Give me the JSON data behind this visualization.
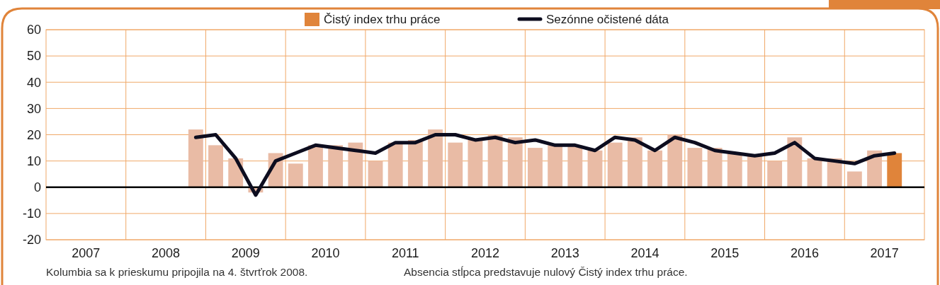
{
  "chart_data": {
    "type": "bar",
    "legend": "top",
    "grid": true,
    "x": [
      2008.875,
      2009.125,
      2009.375,
      2009.625,
      2009.875,
      2010.125,
      2010.375,
      2010.625,
      2010.875,
      2011.125,
      2011.375,
      2011.625,
      2011.875,
      2012.125,
      2012.375,
      2012.625,
      2012.875,
      2013.125,
      2013.375,
      2013.625,
      2013.875,
      2014.125,
      2014.375,
      2014.625,
      2014.875,
      2015.125,
      2015.375,
      2015.625,
      2015.875,
      2016.125,
      2016.375,
      2016.625,
      2016.875,
      2017.125,
      2017.375,
      2017.625
    ],
    "xlim": [
      2007,
      2018
    ],
    "xticks": [
      {
        "value": 2008,
        "label": null
      },
      {
        "value": 2009,
        "label": null
      },
      {
        "value": 2010,
        "label": null
      },
      {
        "value": 2011,
        "label": null
      },
      {
        "value": 2012,
        "label": null
      },
      {
        "value": 2013,
        "label": null
      },
      {
        "value": 2014,
        "label": null
      },
      {
        "value": 2015,
        "label": null
      },
      {
        "value": 2016,
        "label": null
      },
      {
        "value": 2017,
        "label": null
      },
      {
        "value": 2007.5,
        "label": "2007"
      },
      {
        "value": 2008.5,
        "label": "2008"
      },
      {
        "value": 2009.5,
        "label": "2009"
      },
      {
        "value": 2010.5,
        "label": "2010"
      },
      {
        "value": 2011.5,
        "label": "2011"
      },
      {
        "value": 2012.5,
        "label": "2012"
      },
      {
        "value": 2013.5,
        "label": "2013"
      },
      {
        "value": 2014.5,
        "label": "2014"
      },
      {
        "value": 2015.5,
        "label": "2015"
      },
      {
        "value": 2016.5,
        "label": "2016"
      },
      {
        "value": 2017.5,
        "label": "2017"
      }
    ],
    "ylim": [
      -20,
      60
    ],
    "yticks": [
      -20,
      -10,
      0,
      10,
      20,
      30,
      40,
      50,
      60
    ],
    "series": [
      {
        "name": "Čistý index trhu práce",
        "colors": [
          "#e9bba5",
          "#e9bba5",
          "#e9bba5",
          "#e9bba5",
          "#e9bba5",
          "#e9bba5",
          "#e9bba5",
          "#e9bba5",
          "#e9bba5",
          "#e9bba5",
          "#e9bba5",
          "#e9bba5",
          "#e9bba5",
          "#e9bba5",
          "#e9bba5",
          "#e9bba5",
          "#e9bba5",
          "#e9bba5",
          "#e9bba5",
          "#e9bba5",
          "#e9bba5",
          "#e9bba5",
          "#e9bba5",
          "#e9bba5",
          "#e9bba5",
          "#e9bba5",
          "#e9bba5",
          "#e9bba5",
          "#e9bba5",
          "#e9bba5",
          "#e9bba5",
          "#e9bba5",
          "#e9bba5",
          "#e9bba5",
          "#e9bba5",
          "#e0843a"
        ],
        "values": [
          22,
          16,
          11,
          -2,
          13,
          9,
          16,
          16,
          17,
          10,
          17,
          18,
          22,
          17,
          18,
          20,
          19,
          15,
          16,
          16,
          14,
          17,
          19,
          14,
          20,
          15,
          15,
          13,
          12,
          10,
          19,
          11,
          11,
          6,
          14,
          13
        ]
      },
      {
        "name": "Sezónne očistené dáta",
        "type": "line",
        "color": "#0d0d1f",
        "values": [
          19,
          20,
          11,
          -3,
          10,
          13,
          16,
          15,
          14,
          13,
          17,
          17,
          20,
          20,
          18,
          19,
          17,
          18,
          16,
          16,
          14,
          19,
          18,
          14,
          19,
          17,
          14,
          13,
          12,
          13,
          17,
          11,
          10,
          9,
          12,
          13
        ]
      }
    ],
    "ref_lines": [
      {
        "axis": "y",
        "value": 0,
        "color": "#000000"
      }
    ],
    "annotations": [
      "Kolumbia sa k prieskumu pripojila na 4. štvrťrok 2008.",
      "Absencia stĺpca predstavuje nulový Čistý index trhu práce."
    ]
  }
}
